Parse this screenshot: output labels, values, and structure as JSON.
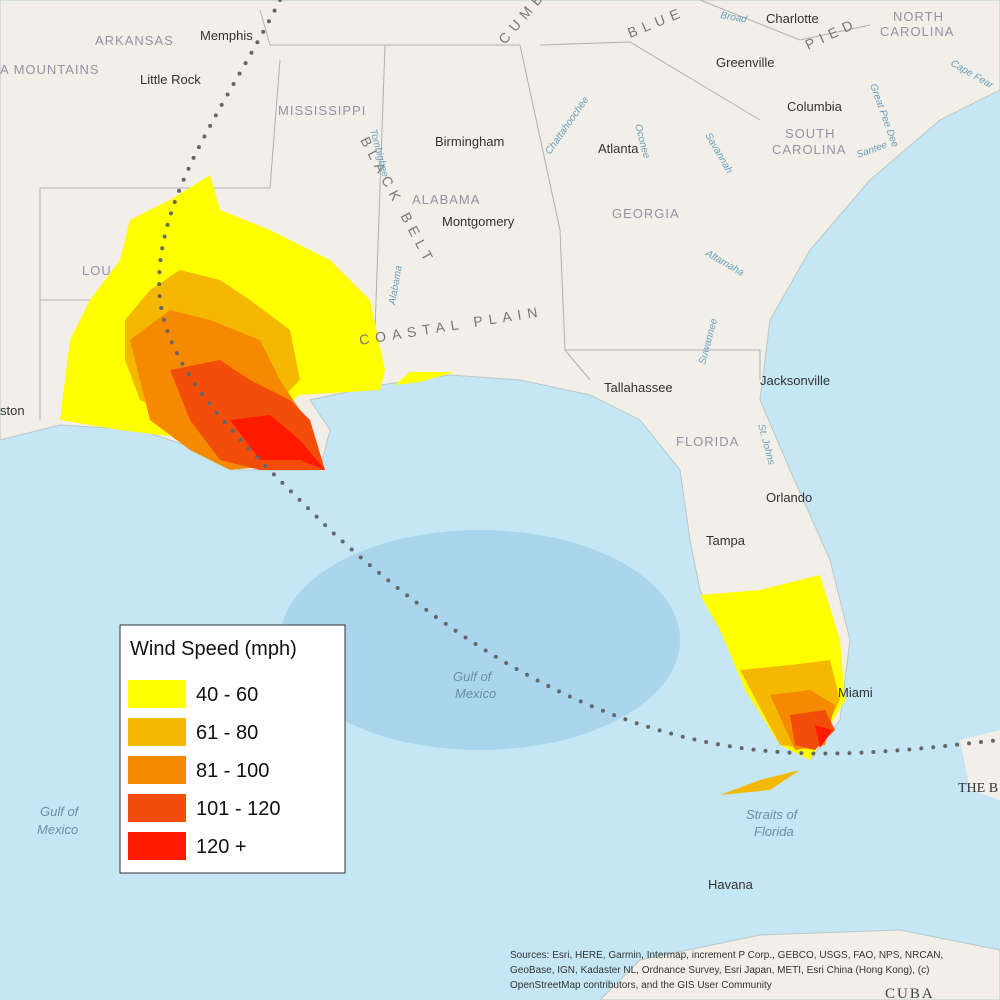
{
  "legend": {
    "title": "Wind Speed (mph)",
    "items": [
      {
        "label": "40 - 60",
        "color": "#ffff00"
      },
      {
        "label": "61 - 80",
        "color": "#f5b800"
      },
      {
        "label": "81 - 100",
        "color": "#f58a00"
      },
      {
        "label": "101 - 120",
        "color": "#f24e0a"
      },
      {
        "label": "120 +",
        "color": "#ff1a00"
      }
    ]
  },
  "places": {
    "states": [
      "ARKANSAS",
      "MISSISSIPPI",
      "ALABAMA",
      "GEORGIA",
      "SOUTH",
      "CAROLINA",
      "NORTH",
      "CAROLINA",
      "FLORIDA",
      "LOU"
    ],
    "cities": [
      "Memphis",
      "Little Rock",
      "Birmingham",
      "Montgomery",
      "Atlanta",
      "Charlotte",
      "Greenville",
      "Columbia",
      "Tallahassee",
      "Jacksonville",
      "Orlando",
      "Tampa",
      "Miami",
      "Havana",
      "ston"
    ],
    "regions": [
      "A MOUNTAINS",
      "BLACK BELT",
      "COASTAL PLAIN",
      "BLUE",
      "CUMB",
      "PIED",
      "CUBA",
      "THE B"
    ],
    "water": [
      "Gulf of",
      "Mexico",
      "Gulf of",
      "Mexico",
      "Straits of",
      "Florida"
    ],
    "rivers": [
      "Chattahoochee",
      "Oconee",
      "Savannah",
      "Altamaha",
      "Suwannee",
      "St. Johns",
      "Alabama",
      "Tombigbee",
      "Broad",
      "Great Pee Dee",
      "Santee",
      "Cape Fear"
    ]
  },
  "attribution": [
    "Sources: Esri, HERE, Garmin, Intermap, increment P Corp., GEBCO, USGS, FAO, NPS, NRCAN,",
    "GeoBase, IGN, Kadaster NL, Ordnance Survey, Esri Japan, METI, Esri China (Hong Kong), (c)",
    "OpenStreetMap contributors, and the GIS User Community"
  ]
}
